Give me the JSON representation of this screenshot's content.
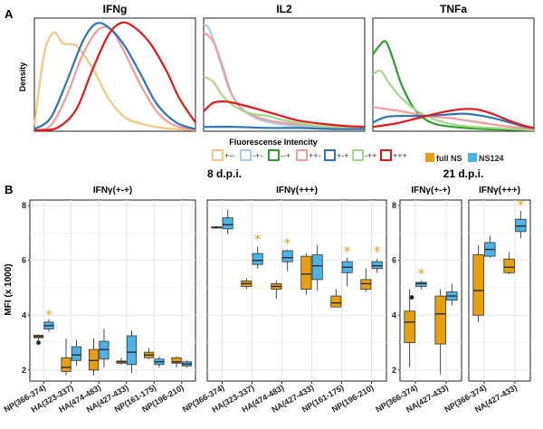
{
  "colors": {
    "orange": "#e6a00f",
    "blue": "#4cb3e6",
    "grid": "#e6e6e6",
    "frame": "#222222",
    "star": "#e6a020"
  },
  "panel_a": {
    "letter": "A",
    "ylabel": "Density",
    "xlabel": "Fluorescense Intencity",
    "titles": [
      "IFNg",
      "IL2",
      "TNFa"
    ],
    "legend": [
      {
        "label": "+--",
        "color": "#f6c680"
      },
      {
        "label": "-+-",
        "color": "#a9cde8"
      },
      {
        "label": "--+",
        "color": "#2f9e2f"
      },
      {
        "label": "++-",
        "color": "#f19c9c"
      },
      {
        "label": "+-+",
        "color": "#2f74b5"
      },
      {
        "label": "-++",
        "color": "#a6d88b"
      },
      {
        "label": "+++",
        "color": "#e2181c"
      }
    ]
  },
  "panel_b": {
    "letter": "B",
    "ylabel": "MFI (x 1000)",
    "group_8": "8 d.p.i.",
    "group_21": "21 d.p.i.",
    "legend": {
      "full": "full NS",
      "ns124": "NS124"
    }
  },
  "chart_data": [
    {
      "type": "line",
      "title": "IFNg",
      "ylabel": "Density",
      "xlabel": "Fluorescense Intencity",
      "series": [
        {
          "name": "+--",
          "values": [
            [
              0,
              0.05
            ],
            [
              0.06,
              0.7
            ],
            [
              0.12,
              0.9
            ],
            [
              0.18,
              0.8
            ],
            [
              0.26,
              0.78
            ],
            [
              0.36,
              0.58
            ],
            [
              0.46,
              0.3
            ],
            [
              0.56,
              0.13
            ],
            [
              0.66,
              0.07
            ],
            [
              0.8,
              0.03
            ],
            [
              1,
              0.01
            ]
          ]
        },
        {
          "name": "++-",
          "values": [
            [
              0,
              0.01
            ],
            [
              0.1,
              0.05
            ],
            [
              0.2,
              0.32
            ],
            [
              0.3,
              0.7
            ],
            [
              0.4,
              0.93
            ],
            [
              0.48,
              0.92
            ],
            [
              0.56,
              0.72
            ],
            [
              0.66,
              0.42
            ],
            [
              0.76,
              0.18
            ],
            [
              0.86,
              0.06
            ],
            [
              1,
              0.01
            ]
          ]
        },
        {
          "name": "+-+",
          "values": [
            [
              0,
              0.02
            ],
            [
              0.1,
              0.12
            ],
            [
              0.2,
              0.45
            ],
            [
              0.3,
              0.82
            ],
            [
              0.38,
              0.98
            ],
            [
              0.46,
              0.95
            ],
            [
              0.56,
              0.78
            ],
            [
              0.66,
              0.52
            ],
            [
              0.76,
              0.25
            ],
            [
              0.88,
              0.08
            ],
            [
              1,
              0.02
            ]
          ]
        },
        {
          "name": "+++",
          "values": [
            [
              0,
              0.01
            ],
            [
              0.14,
              0.03
            ],
            [
              0.26,
              0.2
            ],
            [
              0.36,
              0.56
            ],
            [
              0.46,
              0.88
            ],
            [
              0.54,
              0.99
            ],
            [
              0.62,
              0.95
            ],
            [
              0.72,
              0.8
            ],
            [
              0.82,
              0.55
            ],
            [
              0.9,
              0.3
            ],
            [
              1,
              0.08
            ]
          ]
        }
      ]
    },
    {
      "type": "line",
      "title": "IL2",
      "ylabel": "Density",
      "xlabel": "Fluorescense Intencity",
      "series": [
        {
          "name": "-+-",
          "values": [
            [
              0,
              0.98
            ],
            [
              0.04,
              0.92
            ],
            [
              0.1,
              0.65
            ],
            [
              0.16,
              0.38
            ],
            [
              0.24,
              0.2
            ],
            [
              0.36,
              0.1
            ],
            [
              0.55,
              0.05
            ],
            [
              0.8,
              0.03
            ],
            [
              1,
              0.02
            ]
          ]
        },
        {
          "name": "++-",
          "values": [
            [
              0,
              0.9
            ],
            [
              0.06,
              0.82
            ],
            [
              0.12,
              0.58
            ],
            [
              0.18,
              0.32
            ],
            [
              0.26,
              0.18
            ],
            [
              0.4,
              0.1
            ],
            [
              0.6,
              0.06
            ],
            [
              0.8,
              0.04
            ],
            [
              1,
              0.02
            ]
          ]
        },
        {
          "name": "-++",
          "values": [
            [
              0,
              0.5
            ],
            [
              0.06,
              0.45
            ],
            [
              0.12,
              0.32
            ],
            [
              0.2,
              0.22
            ],
            [
              0.3,
              0.16
            ],
            [
              0.4,
              0.14
            ],
            [
              0.5,
              0.1
            ],
            [
              0.7,
              0.05
            ],
            [
              1,
              0.02
            ]
          ]
        },
        {
          "name": "+-+",
          "values": [
            [
              0,
              0.04
            ],
            [
              0.2,
              0.04
            ],
            [
              0.4,
              0.03
            ],
            [
              0.6,
              0.03
            ],
            [
              0.8,
              0.02
            ],
            [
              1,
              0.02
            ]
          ]
        },
        {
          "name": "+++",
          "values": [
            [
              0,
              0.18
            ],
            [
              0.06,
              0.26
            ],
            [
              0.14,
              0.27
            ],
            [
              0.24,
              0.24
            ],
            [
              0.34,
              0.2
            ],
            [
              0.46,
              0.15
            ],
            [
              0.58,
              0.1
            ],
            [
              0.72,
              0.07
            ],
            [
              0.86,
              0.05
            ],
            [
              1,
              0.04
            ]
          ]
        }
      ]
    },
    {
      "type": "line",
      "title": "TNFa",
      "ylabel": "Density",
      "xlabel": "Fluorescense Intencity",
      "series": [
        {
          "name": "--+",
          "values": [
            [
              0,
              0.7
            ],
            [
              0.04,
              0.78
            ],
            [
              0.08,
              0.82
            ],
            [
              0.12,
              0.68
            ],
            [
              0.18,
              0.42
            ],
            [
              0.26,
              0.2
            ],
            [
              0.36,
              0.08
            ],
            [
              0.5,
              0.04
            ],
            [
              0.7,
              0.02
            ],
            [
              1,
              0.01
            ]
          ]
        },
        {
          "name": "-++",
          "values": [
            [
              0,
              0.52
            ],
            [
              0.05,
              0.55
            ],
            [
              0.1,
              0.44
            ],
            [
              0.18,
              0.3
            ],
            [
              0.28,
              0.18
            ],
            [
              0.4,
              0.1
            ],
            [
              0.55,
              0.05
            ],
            [
              0.75,
              0.03
            ],
            [
              1,
              0.01
            ]
          ]
        },
        {
          "name": "++-",
          "values": [
            [
              0,
              0.22
            ],
            [
              0.1,
              0.2
            ],
            [
              0.22,
              0.17
            ],
            [
              0.34,
              0.14
            ],
            [
              0.48,
              0.12
            ],
            [
              0.62,
              0.09
            ],
            [
              0.8,
              0.05
            ],
            [
              1,
              0.02
            ]
          ]
        },
        {
          "name": "+-+",
          "values": [
            [
              0,
              0.08
            ],
            [
              0.08,
              0.13
            ],
            [
              0.18,
              0.14
            ],
            [
              0.3,
              0.14
            ],
            [
              0.44,
              0.15
            ],
            [
              0.56,
              0.16
            ],
            [
              0.68,
              0.14
            ],
            [
              0.8,
              0.1
            ],
            [
              0.92,
              0.05
            ],
            [
              1,
              0.03
            ]
          ]
        },
        {
          "name": "+++",
          "values": [
            [
              0,
              0.04
            ],
            [
              0.14,
              0.07
            ],
            [
              0.28,
              0.12
            ],
            [
              0.42,
              0.17
            ],
            [
              0.54,
              0.2
            ],
            [
              0.64,
              0.2
            ],
            [
              0.74,
              0.16
            ],
            [
              0.84,
              0.1
            ],
            [
              0.94,
              0.05
            ],
            [
              1,
              0.03
            ]
          ]
        }
      ]
    },
    {
      "type": "box",
      "title": "IFNγ(+-+)",
      "ylabel": "MFI (x 1000)",
      "ylim": [
        1.6,
        8.2
      ],
      "yticks": [
        2,
        4,
        6,
        8
      ],
      "categories": [
        "NP(366-374)",
        "HA(323-337)",
        "HA(474-483)",
        "NA(427-433)",
        "NP(161-175)",
        "NP(196-210)"
      ],
      "series": [
        {
          "name": "full NS",
          "boxes": [
            [
              3.1,
              3.18,
              3.22,
              3.27,
              3.3
            ],
            [
              1.8,
              1.95,
              2.1,
              2.45,
              3.15
            ],
            [
              1.8,
              2.0,
              2.35,
              2.75,
              3.15
            ],
            [
              2.2,
              2.25,
              2.3,
              2.33,
              2.45
            ],
            [
              2.4,
              2.45,
              2.55,
              2.65,
              2.8
            ],
            [
              2.1,
              2.25,
              2.3,
              2.45,
              2.5
            ]
          ]
        },
        {
          "name": "NS124",
          "boxes": [
            [
              3.4,
              3.5,
              3.62,
              3.75,
              3.85
            ],
            [
              2.15,
              2.35,
              2.55,
              2.85,
              3.1
            ],
            [
              2.1,
              2.4,
              2.75,
              3.05,
              3.5
            ],
            [
              1.9,
              2.2,
              2.65,
              3.25,
              3.45
            ],
            [
              2.1,
              2.2,
              2.3,
              2.4,
              2.5
            ],
            [
              2.1,
              2.15,
              2.22,
              2.3,
              2.35
            ]
          ]
        }
      ],
      "outliers": [
        {
          "category": "NP(366-374)",
          "series": "full NS",
          "value": 3.0
        }
      ],
      "stars": [
        {
          "category": "NP(366-374)",
          "value": 4.05
        }
      ]
    },
    {
      "type": "box",
      "title": "IFNγ(+++)",
      "ylabel": "MFI (x 1000)",
      "ylim": [
        1.6,
        8.2
      ],
      "yticks": [
        2,
        4,
        6,
        8
      ],
      "categories": [
        "NP(366-374)",
        "HA(323-337)",
        "HA(474-483)",
        "NA(427-433)",
        "NP(161-175)",
        "NP(196-210)"
      ],
      "series": [
        {
          "name": "full NS",
          "boxes": [
            [
              7.15,
              7.18,
              7.2,
              7.22,
              7.25
            ],
            [
              4.95,
              5.05,
              5.15,
              5.25,
              5.35
            ],
            [
              4.6,
              4.95,
              5.05,
              5.15,
              5.25
            ],
            [
              4.75,
              4.95,
              5.5,
              6.15,
              6.25
            ],
            [
              4.3,
              4.3,
              4.45,
              4.7,
              4.95
            ],
            [
              4.85,
              4.95,
              5.15,
              5.3,
              5.7
            ]
          ]
        },
        {
          "name": "NS124",
          "boxes": [
            [
              6.95,
              7.15,
              7.3,
              7.55,
              7.85
            ],
            [
              5.7,
              5.85,
              6.0,
              6.25,
              6.5
            ],
            [
              5.6,
              5.95,
              6.1,
              6.35,
              6.4
            ],
            [
              4.9,
              5.3,
              5.8,
              6.2,
              6.55
            ],
            [
              5.05,
              5.55,
              5.75,
              5.95,
              6.1
            ],
            [
              5.55,
              5.7,
              5.8,
              5.95,
              6.05
            ]
          ]
        }
      ],
      "stars": [
        {
          "category": "HA(323-337)",
          "value": 6.8
        },
        {
          "category": "HA(474-483)",
          "value": 6.65
        },
        {
          "category": "NP(161-175)",
          "value": 6.35
        },
        {
          "category": "NP(196-210)",
          "value": 6.35
        }
      ]
    },
    {
      "type": "box",
      "title": "IFNγ(+-+)",
      "ylabel": "MFI (x 1000)",
      "ylim": [
        1.6,
        8.2
      ],
      "yticks": [
        2,
        4,
        6,
        8
      ],
      "categories": [
        "NP(366-374)",
        "NA(427-433)"
      ],
      "series": [
        {
          "name": "full NS",
          "boxes": [
            [
              2.1,
              3.0,
              3.75,
              4.15,
              4.95
            ],
            [
              1.85,
              2.95,
              4.05,
              4.7,
              4.95
            ]
          ]
        },
        {
          "name": "NS124",
          "boxes": [
            [
              4.95,
              5.05,
              5.15,
              5.2,
              5.25
            ],
            [
              4.35,
              4.55,
              4.7,
              4.85,
              5.15
            ]
          ]
        }
      ],
      "outliers": [
        {
          "category": "NP(366-374)",
          "series": "NS124",
          "value": 4.65
        }
      ],
      "stars": [
        {
          "category": "NP(366-374)",
          "value": 5.55
        }
      ]
    },
    {
      "type": "box",
      "title": "IFNγ(+++)",
      "ylabel": "MFI (x 1000)",
      "ylim": [
        1.6,
        8.2
      ],
      "yticks": [
        2,
        4,
        6,
        8
      ],
      "categories": [
        "NP(366-374)",
        "NA(427-433)"
      ],
      "series": [
        {
          "name": "full NS",
          "boxes": [
            [
              3.75,
              4.0,
              4.9,
              6.2,
              6.55
            ],
            [
              5.5,
              5.55,
              5.75,
              6.05,
              6.3
            ]
          ]
        },
        {
          "name": "NS124",
          "boxes": [
            [
              6.1,
              6.15,
              6.4,
              6.65,
              6.9
            ],
            [
              6.8,
              7.05,
              7.25,
              7.5,
              7.8
            ]
          ]
        }
      ],
      "stars": [
        {
          "category": "NA(427-433)",
          "value": 8.05
        }
      ]
    }
  ]
}
